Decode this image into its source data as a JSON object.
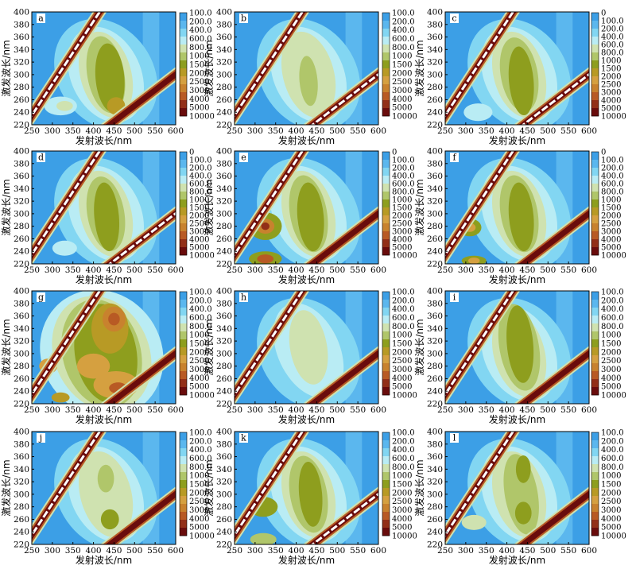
{
  "shared": {
    "xlabel": "发射波长/nm",
    "ylabel": "激发波长/nm",
    "xticks": [
      "250",
      "300",
      "350",
      "400",
      "450",
      "500",
      "550",
      "600"
    ],
    "yticks": [
      "220",
      "240",
      "260",
      "280",
      "300",
      "320",
      "340",
      "360",
      "380",
      "400"
    ]
  },
  "colorbar_levels_zero": [
    "0",
    "100.0",
    "200.0",
    "400.0",
    "600.0",
    "800.0",
    "1000",
    "1500",
    "2000",
    "2500",
    "3000",
    "4000",
    "5000",
    "10000"
  ],
  "colorbar_levels_no_zero": [
    "100.0",
    "200.0",
    "400.0",
    "600.0",
    "800.0",
    "1000",
    "1500",
    "2000",
    "2500",
    "3000",
    "4000",
    "5000",
    "10000"
  ],
  "colorbar_colors": [
    "#2c8fe0",
    "#3c9fe6",
    "#5bb7ee",
    "#82d6f2",
    "#b9ecf4",
    "#cfe2b0",
    "#b0c66a",
    "#8e9e1e",
    "#b89a25",
    "#d5a040",
    "#c8822e",
    "#b85a24",
    "#922f18",
    "#6a0c0c"
  ],
  "chart_data": [
    {
      "type": "heatmap",
      "label": "a",
      "zero_label": false,
      "x_range": [
        250,
        600
      ],
      "y_range": [
        220,
        400
      ],
      "xlabel": "发射波长/nm",
      "ylabel": "激发波长/nm",
      "peaks": [
        {
          "x": 440,
          "y": 290,
          "level": "1500-2000"
        },
        {
          "x": 455,
          "y": 250,
          "level": "2000-2500"
        }
      ],
      "scatter_bands": [
        "rayleigh-first-order",
        "rayleigh-second-order"
      ]
    },
    {
      "type": "heatmap",
      "label": "b",
      "zero_label": false,
      "x_range": [
        250,
        600
      ],
      "y_range": [
        220,
        400
      ],
      "xlabel": "发射波长/nm",
      "ylabel": "激发波长/nm",
      "peaks": [
        {
          "x": 430,
          "y": 290,
          "level": "800-1000"
        }
      ],
      "scatter_bands": [
        "rayleigh-first-order",
        "rayleigh-second-order"
      ]
    },
    {
      "type": "heatmap",
      "label": "c",
      "zero_label": true,
      "x_range": [
        250,
        600
      ],
      "y_range": [
        220,
        400
      ],
      "xlabel": "发射波长/nm",
      "ylabel": "激发波长/nm",
      "peaks": [
        {
          "x": 430,
          "y": 300,
          "level": "1000-1500"
        }
      ],
      "scatter_bands": [
        "rayleigh-first-order",
        "rayleigh-second-order"
      ]
    },
    {
      "type": "heatmap",
      "label": "d",
      "zero_label": true,
      "x_range": [
        250,
        600
      ],
      "y_range": [
        220,
        400
      ],
      "xlabel": "发射波长/nm",
      "ylabel": "激发波长/nm",
      "peaks": [
        {
          "x": 430,
          "y": 300,
          "level": "1000-1500"
        }
      ],
      "scatter_bands": [
        "rayleigh-first-order",
        "rayleigh-second-order"
      ]
    },
    {
      "type": "heatmap",
      "label": "e",
      "zero_label": true,
      "x_range": [
        250,
        600
      ],
      "y_range": [
        220,
        400
      ],
      "xlabel": "发射波长/nm",
      "ylabel": "激发波长/nm",
      "peaks": [
        {
          "x": 325,
          "y": 280,
          "level": "3000-4000"
        },
        {
          "x": 325,
          "y": 228,
          "level": "3000-4000"
        },
        {
          "x": 440,
          "y": 300,
          "level": "1000-1500"
        }
      ],
      "scatter_bands": [
        "rayleigh-first-order",
        "rayleigh-second-order"
      ]
    },
    {
      "type": "heatmap",
      "label": "f",
      "zero_label": true,
      "x_range": [
        250,
        600
      ],
      "y_range": [
        220,
        400
      ],
      "xlabel": "发射波长/nm",
      "ylabel": "激发波长/nm",
      "peaks": [
        {
          "x": 310,
          "y": 278,
          "level": "2000-2500"
        },
        {
          "x": 320,
          "y": 225,
          "level": "2000-2500"
        },
        {
          "x": 440,
          "y": 300,
          "level": "1000-1500"
        }
      ],
      "scatter_bands": [
        "rayleigh-first-order",
        "rayleigh-second-order"
      ]
    },
    {
      "type": "heatmap",
      "label": "g",
      "zero_label": false,
      "x_range": [
        250,
        600
      ],
      "y_range": [
        220,
        400
      ],
      "xlabel": "发射波长/nm",
      "ylabel": "激发波长/nm",
      "peaks": [
        {
          "x": 450,
          "y": 355,
          "level": "3000-4000"
        },
        {
          "x": 460,
          "y": 245,
          "level": "4000-5000"
        },
        {
          "x": 290,
          "y": 280,
          "level": "2500-3000"
        }
      ],
      "scatter_bands": [
        "rayleigh-first-order",
        "rayleigh-second-order"
      ]
    },
    {
      "type": "heatmap",
      "label": "h",
      "zero_label": false,
      "x_range": [
        250,
        600
      ],
      "y_range": [
        220,
        400
      ],
      "xlabel": "发射波长/nm",
      "ylabel": "激发波长/nm",
      "peaks": [
        {
          "x": 430,
          "y": 310,
          "level": "600-800"
        }
      ],
      "scatter_bands": [
        "rayleigh-first-order",
        "rayleigh-second-order"
      ]
    },
    {
      "type": "heatmap",
      "label": "i",
      "zero_label": false,
      "x_range": [
        250,
        600
      ],
      "y_range": [
        220,
        400
      ],
      "xlabel": "发射波长/nm",
      "ylabel": "激发波长/nm",
      "peaks": [
        {
          "x": 430,
          "y": 320,
          "level": "1000-1500"
        }
      ],
      "scatter_bands": [
        "rayleigh-first-order",
        "rayleigh-second-order"
      ]
    },
    {
      "type": "heatmap",
      "label": "j",
      "zero_label": false,
      "x_range": [
        250,
        600
      ],
      "y_range": [
        220,
        400
      ],
      "xlabel": "发射波长/nm",
      "ylabel": "激发波长/nm",
      "peaks": [
        {
          "x": 440,
          "y": 260,
          "level": "1000-1500"
        },
        {
          "x": 430,
          "y": 320,
          "level": "800-1000"
        }
      ],
      "scatter_bands": [
        "rayleigh-first-order",
        "rayleigh-second-order"
      ]
    },
    {
      "type": "heatmap",
      "label": "k",
      "zero_label": false,
      "x_range": [
        250,
        600
      ],
      "y_range": [
        220,
        400
      ],
      "xlabel": "发射波长/nm",
      "ylabel": "激发波长/nm",
      "peaks": [
        {
          "x": 320,
          "y": 280,
          "level": "1000-1500"
        },
        {
          "x": 440,
          "y": 300,
          "level": "1000-1500"
        }
      ],
      "scatter_bands": [
        "rayleigh-first-order",
        "rayleigh-second-order"
      ]
    },
    {
      "type": "heatmap",
      "label": "l",
      "zero_label": false,
      "x_range": [
        250,
        600
      ],
      "y_range": [
        220,
        400
      ],
      "xlabel": "发射波长/nm",
      "ylabel": "激发波长/nm",
      "peaks": [
        {
          "x": 440,
          "y": 340,
          "level": "1000-1500"
        },
        {
          "x": 440,
          "y": 270,
          "level": "1000-1500"
        }
      ],
      "scatter_bands": [
        "rayleigh-first-order",
        "rayleigh-second-order"
      ]
    }
  ]
}
